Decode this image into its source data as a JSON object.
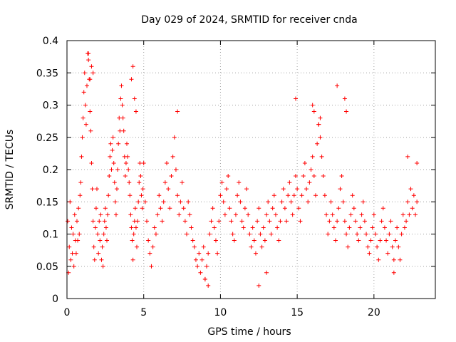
{
  "chart_data": {
    "type": "scatter",
    "title": "Day 029 of 2024, SRMTID for receiver cnda",
    "xlabel": "GPS time / hours",
    "ylabel": "SRMTID / TECUs",
    "xlim": [
      0,
      24
    ],
    "ylim": [
      0,
      0.4
    ],
    "xticks": [
      0,
      5,
      10,
      15,
      20
    ],
    "xtick_labels": [
      "0",
      "5",
      "10",
      "15",
      "20"
    ],
    "yticks": [
      0,
      0.05,
      0.1,
      0.15,
      0.2,
      0.25,
      0.3,
      0.35,
      0.4
    ],
    "ytick_labels": [
      "0",
      "0.05",
      "0.1",
      "0.15",
      "0.2",
      "0.25",
      "0.3",
      "0.35",
      "0.4"
    ],
    "grid": true,
    "marker": "+",
    "color": "#ff0000",
    "series": [
      {
        "name": "SRMTID",
        "x": [
          0.05,
          0.1,
          0.15,
          0.2,
          0.25,
          0.3,
          0.35,
          0.4,
          0.45,
          0.5,
          0.55,
          0.6,
          0.65,
          0.7,
          0.75,
          0.8,
          0.85,
          0.9,
          0.95,
          1.0,
          1.05,
          1.1,
          1.15,
          1.2,
          1.25,
          1.3,
          1.35,
          1.4,
          1.45,
          1.5,
          1.55,
          1.6,
          1.65,
          1.7,
          1.75,
          1.8,
          1.85,
          1.9,
          1.95,
          2.0,
          2.05,
          2.1,
          2.15,
          2.2,
          2.25,
          2.3,
          2.35,
          2.4,
          2.45,
          2.5,
          2.55,
          2.6,
          2.65,
          2.7,
          2.75,
          2.8,
          2.85,
          2.9,
          2.95,
          3.0,
          3.05,
          3.1,
          3.15,
          3.2,
          3.25,
          3.3,
          3.35,
          3.4,
          3.45,
          3.5,
          3.55,
          3.6,
          3.65,
          3.7,
          3.75,
          3.8,
          3.85,
          3.9,
          3.95,
          4.0,
          4.05,
          4.1,
          4.15,
          4.2,
          4.25,
          4.3,
          4.35,
          4.4,
          4.45,
          4.5,
          4.55,
          4.6,
          4.65,
          4.7,
          4.75,
          4.8,
          4.85,
          4.9,
          4.95,
          5.0,
          5.1,
          5.2,
          5.3,
          5.4,
          5.5,
          5.6,
          5.7,
          5.8,
          5.9,
          6.0,
          6.1,
          6.2,
          6.3,
          6.4,
          6.5,
          6.6,
          6.7,
          6.8,
          6.9,
          7.0,
          7.1,
          7.2,
          7.3,
          7.4,
          7.5,
          7.6,
          7.7,
          7.8,
          7.9,
          8.0,
          8.1,
          8.2,
          8.3,
          8.4,
          8.5,
          8.6,
          8.7,
          8.8,
          8.9,
          9.0,
          9.1,
          9.2,
          9.3,
          9.4,
          9.5,
          9.6,
          9.7,
          9.8,
          9.9,
          10.0,
          10.1,
          10.2,
          10.3,
          10.4,
          10.5,
          10.6,
          10.7,
          10.8,
          10.9,
          11.0,
          11.1,
          11.2,
          11.3,
          11.4,
          11.5,
          11.6,
          11.7,
          11.8,
          11.9,
          12.0,
          12.1,
          12.2,
          12.3,
          12.4,
          12.5,
          12.6,
          12.7,
          12.8,
          12.9,
          13.0,
          13.1,
          13.2,
          13.3,
          13.4,
          13.5,
          13.6,
          13.7,
          13.8,
          13.9,
          14.0,
          14.1,
          14.2,
          14.3,
          14.4,
          14.5,
          14.6,
          14.7,
          14.8,
          14.9,
          15.0,
          15.1,
          15.2,
          15.3,
          15.4,
          15.5,
          15.6,
          15.7,
          15.8,
          15.9,
          16.0,
          16.1,
          16.2,
          16.3,
          16.4,
          16.5,
          16.6,
          16.7,
          16.8,
          16.9,
          17.0,
          17.1,
          17.2,
          17.3,
          17.4,
          17.5,
          17.6,
          17.7,
          17.8,
          17.9,
          18.0,
          18.1,
          18.2,
          18.3,
          18.4,
          18.5,
          18.6,
          18.7,
          18.8,
          18.9,
          19.0,
          19.1,
          19.2,
          19.3,
          19.4,
          19.5,
          19.6,
          19.7,
          19.8,
          19.9,
          20.0,
          20.1,
          20.2,
          20.3,
          20.4,
          20.5,
          20.6,
          20.7,
          20.8,
          20.9,
          21.0,
          21.1,
          21.2,
          21.3,
          21.4,
          21.5,
          21.6,
          21.7,
          21.8,
          21.9,
          22.0,
          22.1,
          22.2,
          22.3,
          22.4,
          22.5,
          22.6,
          22.7,
          22.8,
          1.4,
          1.5,
          1.6,
          1.7,
          4.2,
          4.3,
          4.4,
          4.5,
          7.2,
          14.9,
          16.0,
          16.1,
          16.4,
          17.6,
          18.1,
          18.2,
          9.2,
          9.0,
          12.5,
          13.0,
          16.5,
          21.3,
          22.2,
          22.8
        ],
        "y": [
          0.12,
          0.04,
          0.08,
          0.15,
          0.06,
          0.11,
          0.07,
          0.1,
          0.05,
          0.13,
          0.09,
          0.07,
          0.12,
          0.09,
          0.14,
          0.1,
          0.16,
          0.18,
          0.22,
          0.25,
          0.28,
          0.32,
          0.35,
          0.3,
          0.27,
          0.33,
          0.38,
          0.37,
          0.34,
          0.29,
          0.26,
          0.21,
          0.17,
          0.12,
          0.08,
          0.06,
          0.11,
          0.14,
          0.17,
          0.1,
          0.07,
          0.12,
          0.09,
          0.13,
          0.06,
          0.08,
          0.05,
          0.1,
          0.12,
          0.14,
          0.11,
          0.09,
          0.13,
          0.16,
          0.19,
          0.22,
          0.24,
          0.2,
          0.23,
          0.25,
          0.21,
          0.18,
          0.15,
          0.13,
          0.17,
          0.2,
          0.24,
          0.28,
          0.26,
          0.31,
          0.33,
          0.3,
          0.28,
          0.26,
          0.22,
          0.19,
          0.21,
          0.24,
          0.22,
          0.2,
          0.18,
          0.16,
          0.13,
          0.11,
          0.09,
          0.06,
          0.1,
          0.12,
          0.14,
          0.11,
          0.08,
          0.12,
          0.15,
          0.18,
          0.21,
          0.19,
          0.16,
          0.14,
          0.17,
          0.21,
          0.15,
          0.12,
          0.09,
          0.07,
          0.05,
          0.08,
          0.11,
          0.1,
          0.13,
          0.16,
          0.14,
          0.12,
          0.15,
          0.18,
          0.21,
          0.17,
          0.14,
          0.19,
          0.22,
          0.25,
          0.2,
          0.16,
          0.13,
          0.15,
          0.18,
          0.14,
          0.12,
          0.1,
          0.15,
          0.13,
          0.11,
          0.09,
          0.08,
          0.06,
          0.05,
          0.07,
          0.04,
          0.06,
          0.08,
          0.03,
          0.05,
          0.07,
          0.1,
          0.12,
          0.14,
          0.11,
          0.09,
          0.07,
          0.12,
          0.16,
          0.18,
          0.15,
          0.13,
          0.17,
          0.19,
          0.14,
          0.12,
          0.1,
          0.09,
          0.13,
          0.16,
          0.18,
          0.15,
          0.12,
          0.11,
          0.14,
          0.17,
          0.13,
          0.1,
          0.08,
          0.11,
          0.09,
          0.07,
          0.12,
          0.14,
          0.1,
          0.08,
          0.11,
          0.09,
          0.13,
          0.15,
          0.12,
          0.1,
          0.14,
          0.16,
          0.13,
          0.11,
          0.09,
          0.12,
          0.15,
          0.17,
          0.14,
          0.12,
          0.16,
          0.18,
          0.15,
          0.13,
          0.16,
          0.19,
          0.17,
          0.14,
          0.12,
          0.16,
          0.19,
          0.21,
          0.17,
          0.15,
          0.18,
          0.2,
          0.22,
          0.19,
          0.16,
          0.24,
          0.27,
          0.25,
          0.22,
          0.19,
          0.16,
          0.13,
          0.1,
          0.12,
          0.15,
          0.13,
          0.11,
          0.09,
          0.12,
          0.14,
          0.17,
          0.19,
          0.15,
          0.12,
          0.1,
          0.08,
          0.11,
          0.13,
          0.16,
          0.14,
          0.12,
          0.1,
          0.09,
          0.11,
          0.13,
          0.15,
          0.12,
          0.1,
          0.08,
          0.07,
          0.09,
          0.11,
          0.13,
          0.1,
          0.08,
          0.06,
          0.09,
          0.12,
          0.14,
          0.11,
          0.09,
          0.07,
          0.1,
          0.12,
          0.08,
          0.06,
          0.09,
          0.11,
          0.08,
          0.06,
          0.1,
          0.13,
          0.11,
          0.12,
          0.15,
          0.13,
          0.17,
          0.14,
          0.16,
          0.13,
          0.15,
          0.38,
          0.34,
          0.36,
          0.35,
          0.34,
          0.36,
          0.31,
          0.29,
          0.29,
          0.31,
          0.3,
          0.29,
          0.27,
          0.33,
          0.31,
          0.29,
          0.02,
          0.03,
          0.02,
          0.04,
          0.28,
          0.04,
          0.22,
          0.21
        ]
      }
    ]
  }
}
